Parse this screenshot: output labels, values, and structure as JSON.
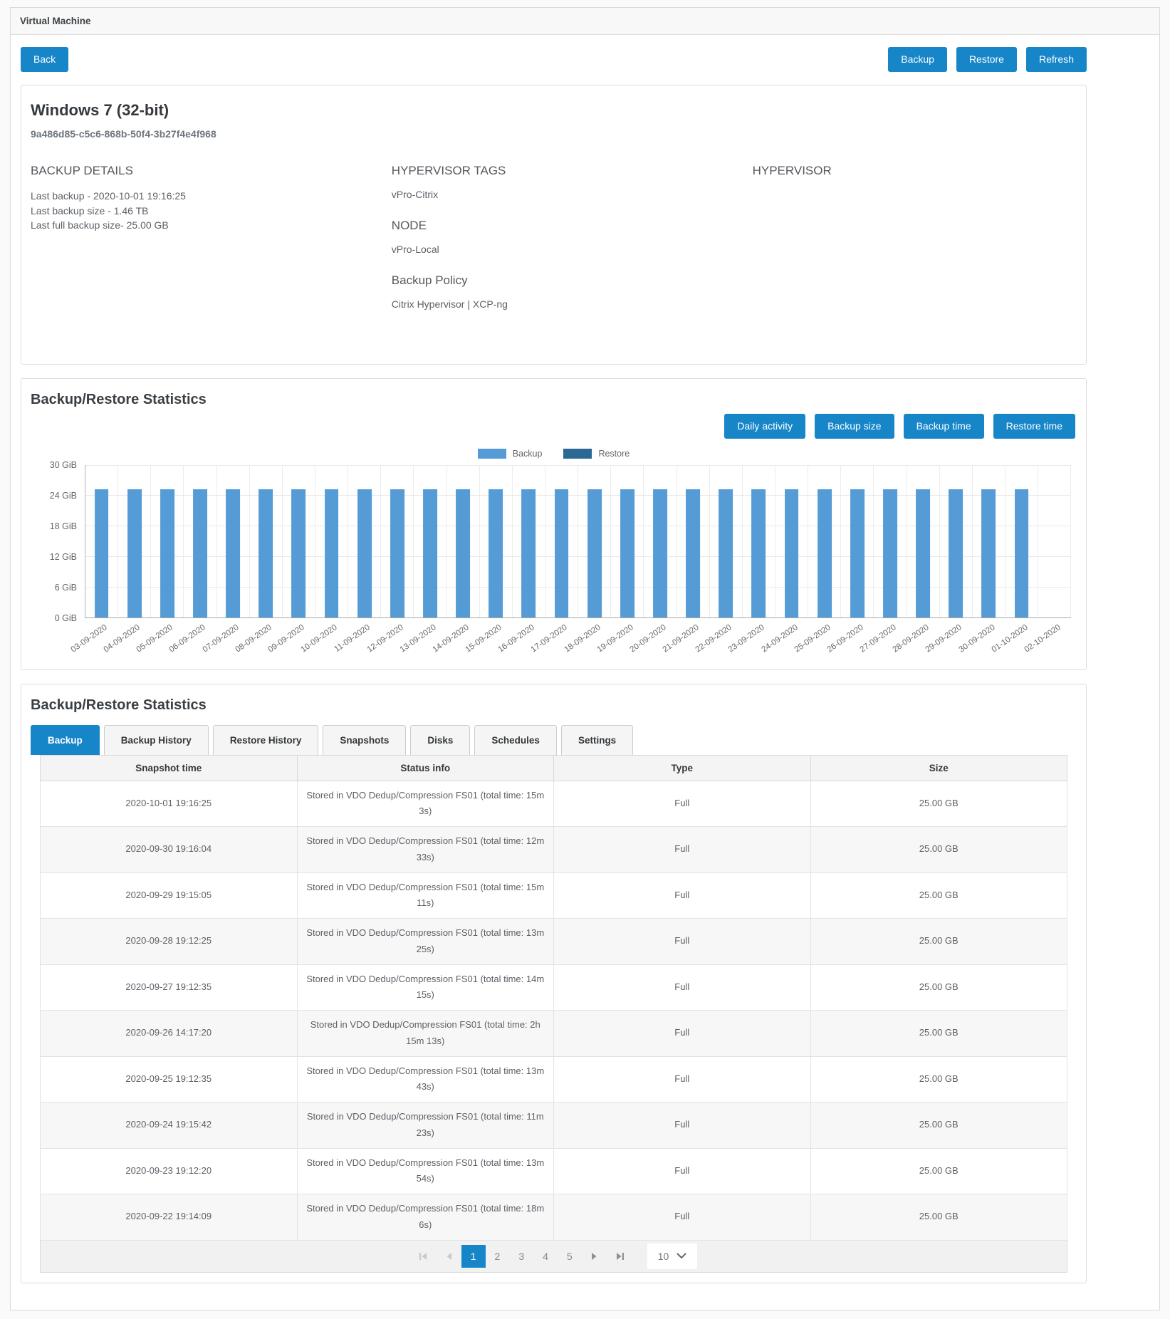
{
  "window": {
    "title": "Virtual Machine"
  },
  "toolbar": {
    "back": "Back",
    "backup": "Backup",
    "restore": "Restore",
    "refresh": "Refresh"
  },
  "accent_color": "#1786c9",
  "vm": {
    "name": "Windows 7 (32-bit)",
    "uuid": "9a486d85-c5c6-868b-50f4-3b27f4e4f968",
    "backup_details": {
      "title": "BACKUP DETAILS",
      "lines": [
        "Last backup - 2020-10-01 19:16:25",
        "Last backup size - 1.46 TB",
        "Last full backup size- 25.00 GB"
      ]
    },
    "hypervisor_tags": {
      "title": "HYPERVISOR TAGS",
      "value": "vPro-Citrix"
    },
    "node": {
      "title": "NODE",
      "value": "vPro-Local"
    },
    "backup_policy": {
      "title": "Backup Policy",
      "value": "Citrix Hypervisor | XCP-ng"
    },
    "hypervisor": {
      "title": "HYPERVISOR",
      "value": ""
    }
  },
  "stats_chart": {
    "title": "Backup/Restore Statistics",
    "buttons": [
      "Daily activity",
      "Backup size",
      "Backup time",
      "Restore time"
    ]
  },
  "chart_data": {
    "type": "bar",
    "title": "Daily activity",
    "xlabel": "",
    "ylabel": "GiB",
    "ylim": [
      0,
      30
    ],
    "grid": true,
    "legend_position": "top",
    "yticks": [
      {
        "label": "0 GiB",
        "value": 0
      },
      {
        "label": "6 GiB",
        "value": 6
      },
      {
        "label": "12 GiB",
        "value": 12
      },
      {
        "label": "18 GiB",
        "value": 18
      },
      {
        "label": "24 GiB",
        "value": 24
      },
      {
        "label": "30 GiB",
        "value": 30
      }
    ],
    "categories": [
      "03-09-2020",
      "04-09-2020",
      "05-09-2020",
      "06-09-2020",
      "07-09-2020",
      "08-09-2020",
      "09-09-2020",
      "10-09-2020",
      "11-09-2020",
      "12-09-2020",
      "13-09-2020",
      "14-09-2020",
      "15-09-2020",
      "16-09-2020",
      "17-09-2020",
      "18-09-2020",
      "19-09-2020",
      "20-09-2020",
      "21-09-2020",
      "22-09-2020",
      "23-09-2020",
      "24-09-2020",
      "25-09-2020",
      "26-09-2020",
      "27-09-2020",
      "28-09-2020",
      "29-09-2020",
      "30-09-2020",
      "01-10-2020",
      "02-10-2020"
    ],
    "series": [
      {
        "name": "Backup",
        "color": "#559bd6",
        "values": [
          25.2,
          25.2,
          25.2,
          25.2,
          25.2,
          25.2,
          25.2,
          25.2,
          25.2,
          25.2,
          25.2,
          25.2,
          25.2,
          25.2,
          25.2,
          25.2,
          25.2,
          25.2,
          25.2,
          25.2,
          25.2,
          25.2,
          25.2,
          25.2,
          25.2,
          25.2,
          25.2,
          25.2,
          25.2,
          0
        ]
      },
      {
        "name": "Restore",
        "color": "#2c6894",
        "values": [
          0,
          0,
          0,
          0,
          0,
          0,
          0,
          0,
          0,
          0,
          0,
          0,
          0,
          0,
          0,
          0,
          0,
          0,
          0,
          0,
          0,
          0,
          0,
          0,
          0,
          0,
          0,
          0,
          0,
          0
        ]
      }
    ]
  },
  "stats_table": {
    "title": "Backup/Restore Statistics",
    "tabs": [
      {
        "label": "Backup",
        "active": true
      },
      {
        "label": "Backup History",
        "active": false
      },
      {
        "label": "Restore History",
        "active": false
      },
      {
        "label": "Snapshots",
        "active": false
      },
      {
        "label": "Disks",
        "active": false
      },
      {
        "label": "Schedules",
        "active": false
      },
      {
        "label": "Settings",
        "active": false
      }
    ],
    "columns": [
      "Snapshot time",
      "Status info",
      "Type",
      "Size"
    ],
    "rows": [
      {
        "snapshot_time": "2020-10-01 19:16:25",
        "status_info": "Stored in VDO Dedup/Compression FS01 (total time: 15m 3s)",
        "type": "Full",
        "size": "25.00 GB"
      },
      {
        "snapshot_time": "2020-09-30 19:16:04",
        "status_info": "Stored in VDO Dedup/Compression FS01 (total time: 12m 33s)",
        "type": "Full",
        "size": "25.00 GB"
      },
      {
        "snapshot_time": "2020-09-29 19:15:05",
        "status_info": "Stored in VDO Dedup/Compression FS01 (total time: 15m 11s)",
        "type": "Full",
        "size": "25.00 GB"
      },
      {
        "snapshot_time": "2020-09-28 19:12:25",
        "status_info": "Stored in VDO Dedup/Compression FS01 (total time: 13m 25s)",
        "type": "Full",
        "size": "25.00 GB"
      },
      {
        "snapshot_time": "2020-09-27 19:12:35",
        "status_info": "Stored in VDO Dedup/Compression FS01 (total time: 14m 15s)",
        "type": "Full",
        "size": "25.00 GB"
      },
      {
        "snapshot_time": "2020-09-26 14:17:20",
        "status_info": "Stored in VDO Dedup/Compression FS01 (total time: 2h 15m 13s)",
        "type": "Full",
        "size": "25.00 GB"
      },
      {
        "snapshot_time": "2020-09-25 19:12:35",
        "status_info": "Stored in VDO Dedup/Compression FS01 (total time: 13m 43s)",
        "type": "Full",
        "size": "25.00 GB"
      },
      {
        "snapshot_time": "2020-09-24 19:15:42",
        "status_info": "Stored in VDO Dedup/Compression FS01 (total time: 11m 23s)",
        "type": "Full",
        "size": "25.00 GB"
      },
      {
        "snapshot_time": "2020-09-23 19:12:20",
        "status_info": "Stored in VDO Dedup/Compression FS01 (total time: 13m 54s)",
        "type": "Full",
        "size": "25.00 GB"
      },
      {
        "snapshot_time": "2020-09-22 19:14:09",
        "status_info": "Stored in VDO Dedup/Compression FS01 (total time: 18m 6s)",
        "type": "Full",
        "size": "25.00 GB"
      }
    ],
    "pagination": {
      "pages": [
        "1",
        "2",
        "3",
        "4",
        "5"
      ],
      "active_page": "1",
      "page_size": "10"
    }
  }
}
